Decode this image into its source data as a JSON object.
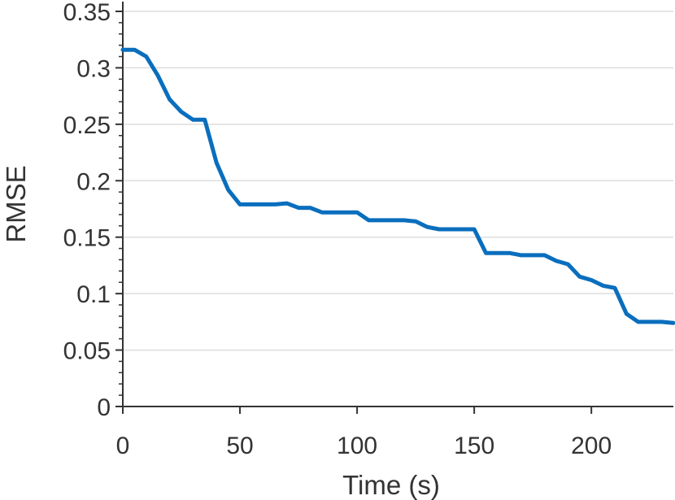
{
  "chart_data": {
    "type": "line",
    "title": "",
    "xlabel": "Time (s)",
    "ylabel": "RMSE",
    "xlim": [
      0,
      235
    ],
    "ylim": [
      0,
      0.35
    ],
    "xticks": [
      0,
      50,
      100,
      150,
      200
    ],
    "xtick_labels": [
      "0",
      "50",
      "100",
      "150",
      "200"
    ],
    "yticks": [
      0,
      0.05,
      0.1,
      0.15,
      0.2,
      0.25,
      0.3,
      0.35
    ],
    "ytick_labels": [
      "0",
      "0.05",
      "0.1",
      "0.15",
      "0.2",
      "0.25",
      "0.3",
      "0.35"
    ],
    "grid": "horizontal",
    "series": [
      {
        "color": "#0a6ebd",
        "x": [
          0,
          5,
          10,
          15,
          20,
          25,
          30,
          35,
          40,
          45,
          50,
          55,
          60,
          65,
          70,
          75,
          80,
          85,
          90,
          95,
          100,
          105,
          110,
          115,
          120,
          125,
          130,
          135,
          140,
          145,
          150,
          155,
          160,
          165,
          170,
          175,
          180,
          185,
          190,
          195,
          200,
          205,
          210,
          215,
          220,
          225,
          230,
          235
        ],
        "y": [
          0.316,
          0.316,
          0.31,
          0.293,
          0.272,
          0.261,
          0.254,
          0.254,
          0.216,
          0.192,
          0.179,
          0.179,
          0.179,
          0.179,
          0.18,
          0.176,
          0.176,
          0.172,
          0.172,
          0.172,
          0.172,
          0.165,
          0.165,
          0.165,
          0.165,
          0.164,
          0.159,
          0.157,
          0.157,
          0.157,
          0.157,
          0.136,
          0.136,
          0.136,
          0.134,
          0.134,
          0.134,
          0.129,
          0.126,
          0.115,
          0.112,
          0.107,
          0.105,
          0.082,
          0.075,
          0.075,
          0.075,
          0.074
        ]
      }
    ]
  }
}
